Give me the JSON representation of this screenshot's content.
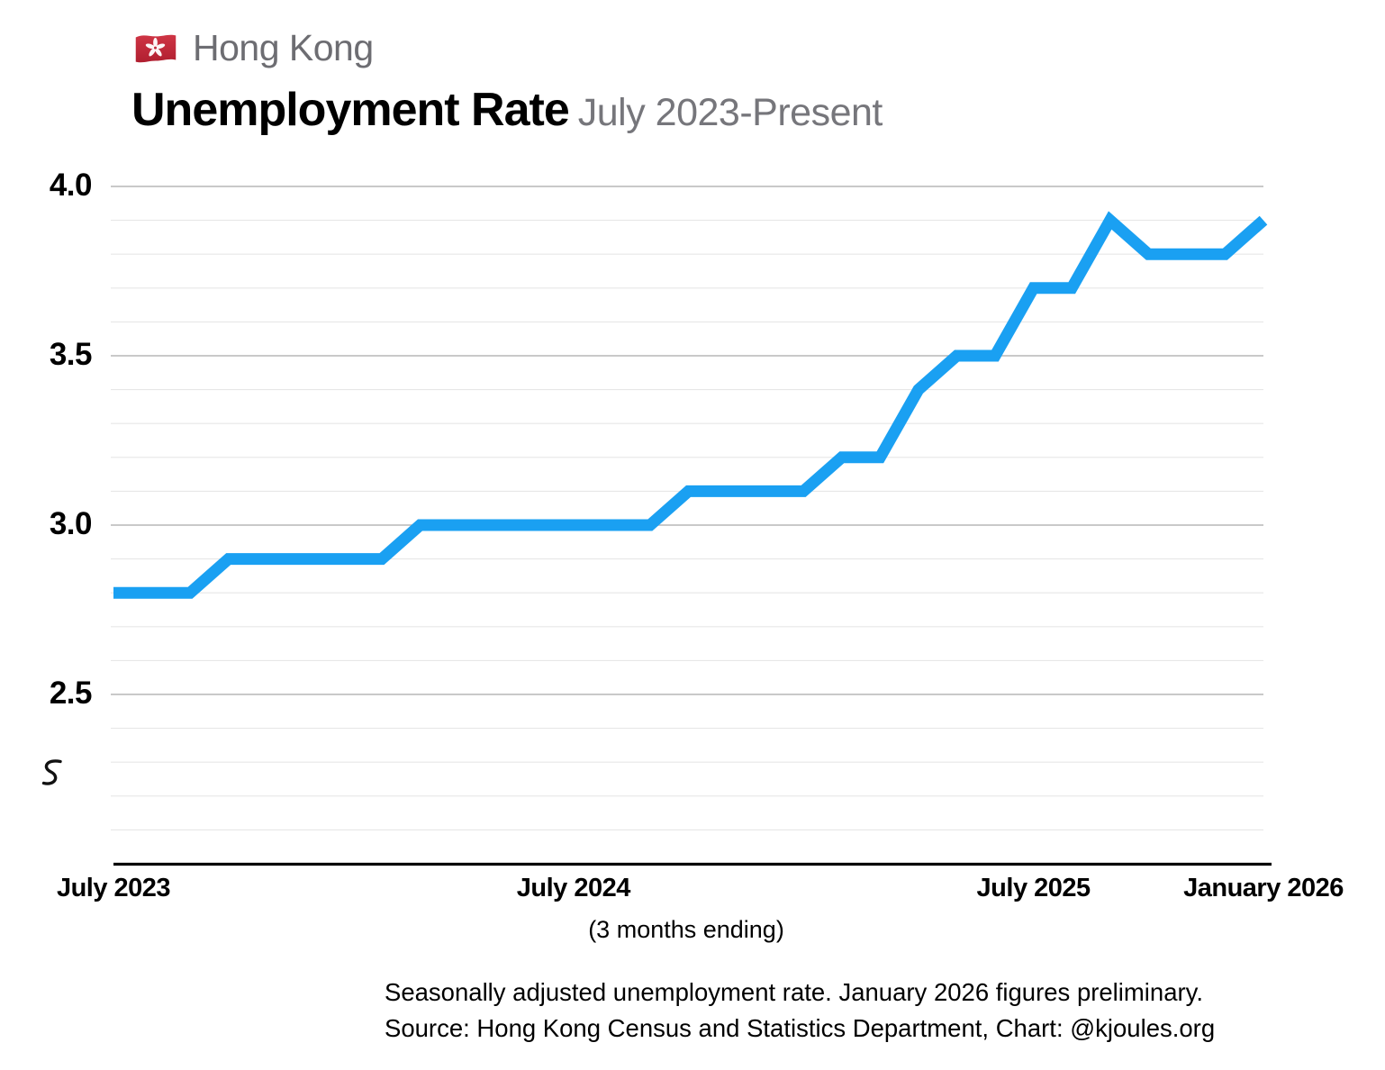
{
  "header": {
    "country": "Hong Kong",
    "flag_icon": "hong-kong-flag",
    "title": "Unemployment Rate",
    "subtitle": "July 2023-Present"
  },
  "chart_data": {
    "type": "line",
    "title": "Unemployment Rate",
    "period": "July 2023-Present",
    "x_note": "(3 months ending)",
    "x": [
      "Jul 2023",
      "Aug 2023",
      "Sep 2023",
      "Oct 2023",
      "Nov 2023",
      "Dec 2023",
      "Jan 2024",
      "Feb 2024",
      "Mar 2024",
      "Apr 2024",
      "May 2024",
      "Jun 2024",
      "Jul 2024",
      "Aug 2024",
      "Sep 2024",
      "Oct 2024",
      "Nov 2024",
      "Dec 2024",
      "Jan 2025",
      "Feb 2025",
      "Mar 2025",
      "Apr 2025",
      "May 2025",
      "Jun 2025",
      "Jul 2025",
      "Aug 2025",
      "Sep 2025",
      "Oct 2025",
      "Nov 2025",
      "Dec 2025",
      "Jan 2026"
    ],
    "series": [
      {
        "name": "Seasonally adjusted unemployment rate (%)",
        "color": "#1aa0f2",
        "values": [
          2.8,
          2.8,
          2.8,
          2.9,
          2.9,
          2.9,
          2.9,
          2.9,
          3.0,
          3.0,
          3.0,
          3.0,
          3.0,
          3.0,
          3.0,
          3.1,
          3.1,
          3.1,
          3.1,
          3.2,
          3.2,
          3.4,
          3.5,
          3.5,
          3.7,
          3.7,
          3.9,
          3.8,
          3.8,
          3.8,
          3.9
        ]
      }
    ],
    "x_ticks": [
      {
        "index": 0,
        "label": "July 2023"
      },
      {
        "index": 12,
        "label": "July 2024"
      },
      {
        "index": 24,
        "label": "July 2025"
      },
      {
        "index": 30,
        "label": "January 2026"
      }
    ],
    "y_ticks": [
      "4.0",
      "3.5",
      "3.0",
      "2.5"
    ],
    "y_minor_step": 0.1,
    "ylim": [
      2.0,
      4.0
    ],
    "axis_break": true,
    "grid": {
      "major_color": "#b7b7b7",
      "minor_color": "#e7e7e7"
    },
    "axis_color": "#000000",
    "legend": "none"
  },
  "footer": {
    "line1": "Seasonally adjusted unemployment rate. January 2026 figures preliminary.",
    "line2": "Source: Hong Kong Census and Statistics Department, Chart: @kjoules.org"
  }
}
